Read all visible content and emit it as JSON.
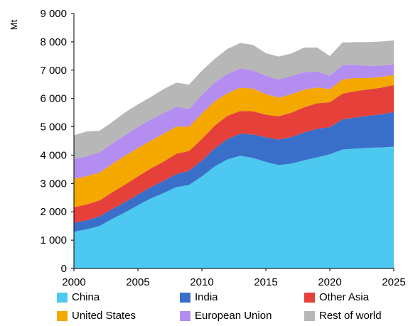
{
  "chart_data": {
    "type": "area",
    "stacked": true,
    "ylabel": "Mt",
    "ylim": [
      0,
      9000
    ],
    "yticks": [
      0,
      1000,
      2000,
      3000,
      4000,
      5000,
      6000,
      7000,
      8000,
      9000
    ],
    "ytick_labels": [
      "0",
      "1 000",
      "2 000",
      "3 000",
      "4 000",
      "5 000",
      "6 000",
      "7 000",
      "8 000",
      "9 000"
    ],
    "xlim": [
      2000,
      2025
    ],
    "xticks": [
      2000,
      2005,
      2010,
      2015,
      2020,
      2025
    ],
    "xtick_labels": [
      "2000",
      "2005",
      "2010",
      "2015",
      "2020",
      "2025"
    ],
    "grid": false,
    "legend_position": "bottom",
    "x": [
      2000,
      2001,
      2002,
      2003,
      2004,
      2005,
      2006,
      2007,
      2008,
      2009,
      2010,
      2011,
      2012,
      2013,
      2014,
      2015,
      2016,
      2017,
      2018,
      2019,
      2020,
      2021,
      2022,
      2023,
      2024,
      2025
    ],
    "series": [
      {
        "name": "China",
        "color": "#4dc8f0",
        "values": [
          1300,
          1380,
          1500,
          1750,
          1980,
          2230,
          2470,
          2660,
          2870,
          2950,
          3250,
          3600,
          3850,
          3980,
          3900,
          3760,
          3650,
          3700,
          3820,
          3920,
          4030,
          4200,
          4230,
          4260,
          4270,
          4300
        ]
      },
      {
        "name": "India",
        "color": "#3a6fc9",
        "values": [
          310,
          320,
          340,
          350,
          360,
          380,
          400,
          430,
          460,
          500,
          560,
          640,
          720,
          780,
          830,
          870,
          900,
          940,
          980,
          1010,
          960,
          1060,
          1100,
          1130,
          1170,
          1220
        ]
      },
      {
        "name": "Other Asia",
        "color": "#e5413a",
        "values": [
          550,
          560,
          560,
          590,
          620,
          640,
          660,
          680,
          720,
          700,
          760,
          800,
          820,
          800,
          820,
          800,
          820,
          860,
          890,
          900,
          880,
          910,
          930,
          930,
          940,
          950
        ]
      },
      {
        "name": "United States",
        "color": "#f5a800",
        "values": [
          1000,
          1000,
          980,
          1000,
          1020,
          1000,
          980,
          980,
          960,
          850,
          900,
          860,
          800,
          820,
          800,
          720,
          660,
          650,
          620,
          560,
          460,
          500,
          460,
          400,
          380,
          360
        ]
      },
      {
        "name": "European Union",
        "color": "#b48df0",
        "values": [
          700,
          700,
          720,
          720,
          730,
          740,
          740,
          740,
          700,
          630,
          650,
          660,
          680,
          680,
          640,
          650,
          640,
          640,
          620,
          560,
          480,
          510,
          470,
          430,
          400,
          380
        ]
      },
      {
        "name": "Rest of world",
        "color": "#b7b7b7",
        "values": [
          840,
          880,
          760,
          760,
          800,
          800,
          800,
          840,
          850,
          860,
          860,
          840,
          880,
          900,
          900,
          800,
          810,
          800,
          870,
          850,
          690,
          800,
          800,
          840,
          850,
          840
        ]
      }
    ]
  }
}
